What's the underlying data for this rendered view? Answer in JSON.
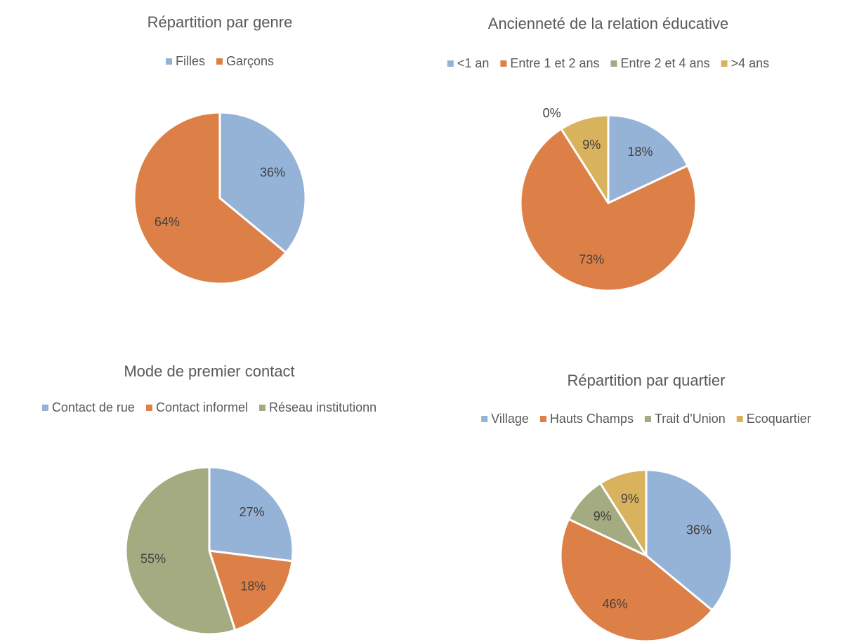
{
  "chart_data": [
    {
      "type": "pie",
      "title": "Répartition par genre",
      "categories": [
        "Filles",
        "Garçons"
      ],
      "values": [
        36,
        64
      ],
      "value_labels": [
        "36%",
        "64%"
      ],
      "colors": [
        "#95b3d7",
        "#dd8047"
      ],
      "legend": "top"
    },
    {
      "type": "pie",
      "title": "Ancienneté de la relation éducative",
      "categories": [
        "<1 an",
        "Entre 1 et 2 ans",
        "Entre 2 et 4 ans",
        ">4 ans"
      ],
      "values": [
        18,
        73,
        0,
        9
      ],
      "value_labels": [
        "18%",
        "73%",
        "0%",
        "9%"
      ],
      "colors": [
        "#95b3d7",
        "#dd8047",
        "#a5ab81",
        "#d8b25c"
      ],
      "legend": "top"
    },
    {
      "type": "pie",
      "title": "Mode de premier contact",
      "categories": [
        "Contact de rue",
        "Contact informel",
        "Réseau institutionn"
      ],
      "values": [
        27,
        18,
        55
      ],
      "value_labels": [
        "27%",
        "18%",
        "55%"
      ],
      "colors": [
        "#95b3d7",
        "#dd8047",
        "#a5ab81"
      ],
      "legend": "top"
    },
    {
      "type": "pie",
      "title": "Répartition par quartier",
      "categories": [
        "Village",
        "Hauts Champs",
        "Trait d'Union",
        "Ecoquartier"
      ],
      "values": [
        36,
        46,
        9,
        9
      ],
      "value_labels": [
        "36%",
        "46%",
        "9%",
        "9%"
      ],
      "colors": [
        "#95b3d7",
        "#dd8047",
        "#a5ab81",
        "#d8b25c"
      ],
      "legend": "top"
    }
  ]
}
